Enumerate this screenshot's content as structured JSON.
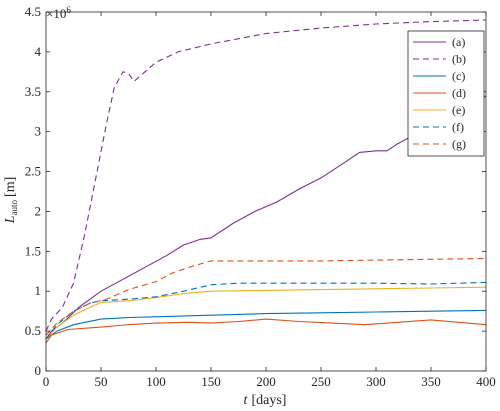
{
  "chart_data": {
    "type": "line",
    "xlabel_var": "t",
    "xlabel_unit": "[days]",
    "ylabel_var": "L",
    "ylabel_sub": "auto",
    "ylabel_unit": "[m]",
    "y_multiplier": "×10",
    "y_multiplier_exp": "6",
    "xlim": [
      0,
      400
    ],
    "ylim": [
      0,
      4.5
    ],
    "x_ticks": [
      0,
      50,
      100,
      150,
      200,
      250,
      300,
      350,
      400
    ],
    "y_ticks": [
      0,
      0.5,
      1,
      1.5,
      2,
      2.5,
      3,
      3.5,
      4,
      4.5
    ],
    "x_tick_labels": [
      "0",
      "50",
      "100",
      "150",
      "200",
      "250",
      "300",
      "350",
      "400"
    ],
    "y_tick_labels": [
      "0",
      "0.5",
      "1",
      "1.5",
      "2",
      "2.5",
      "3",
      "3.5",
      "4",
      "4.5"
    ],
    "grid": false,
    "legend_position": "top-right",
    "series": [
      {
        "name": "(a)",
        "color": "#7E2F8E",
        "dash": "solid",
        "points": [
          [
            0,
            0.4
          ],
          [
            5,
            0.5
          ],
          [
            15,
            0.6
          ],
          [
            30,
            0.8
          ],
          [
            50,
            1.0
          ],
          [
            70,
            1.15
          ],
          [
            90,
            1.3
          ],
          [
            110,
            1.45
          ],
          [
            125,
            1.58
          ],
          [
            140,
            1.65
          ],
          [
            150,
            1.67
          ],
          [
            170,
            1.85
          ],
          [
            190,
            2.0
          ],
          [
            210,
            2.12
          ],
          [
            230,
            2.28
          ],
          [
            250,
            2.42
          ],
          [
            270,
            2.6
          ],
          [
            285,
            2.74
          ],
          [
            300,
            2.76
          ],
          [
            310,
            2.76
          ],
          [
            320,
            2.85
          ],
          [
            340,
            3.0
          ],
          [
            360,
            3.1
          ],
          [
            380,
            3.25
          ],
          [
            400,
            3.45
          ]
        ]
      },
      {
        "name": "(b)",
        "color": "#7E2F8E",
        "dash": "dashed",
        "points": [
          [
            0,
            0.5
          ],
          [
            5,
            0.65
          ],
          [
            15,
            0.8
          ],
          [
            25,
            1.1
          ],
          [
            35,
            1.7
          ],
          [
            45,
            2.4
          ],
          [
            55,
            3.1
          ],
          [
            62,
            3.55
          ],
          [
            70,
            3.75
          ],
          [
            75,
            3.73
          ],
          [
            80,
            3.63
          ],
          [
            90,
            3.75
          ],
          [
            100,
            3.87
          ],
          [
            120,
            4.0
          ],
          [
            150,
            4.1
          ],
          [
            200,
            4.23
          ],
          [
            250,
            4.3
          ],
          [
            300,
            4.35
          ],
          [
            350,
            4.38
          ],
          [
            400,
            4.4
          ]
        ]
      },
      {
        "name": "(c)",
        "color": "#0072BD",
        "dash": "solid",
        "points": [
          [
            0,
            0.4
          ],
          [
            10,
            0.5
          ],
          [
            25,
            0.58
          ],
          [
            50,
            0.65
          ],
          [
            75,
            0.67
          ],
          [
            100,
            0.68
          ],
          [
            150,
            0.7
          ],
          [
            200,
            0.72
          ],
          [
            250,
            0.73
          ],
          [
            300,
            0.74
          ],
          [
            350,
            0.75
          ],
          [
            400,
            0.76
          ]
        ]
      },
      {
        "name": "(d)",
        "color": "#D95319",
        "dash": "solid",
        "points": [
          [
            0,
            0.35
          ],
          [
            5,
            0.45
          ],
          [
            20,
            0.52
          ],
          [
            50,
            0.55
          ],
          [
            75,
            0.58
          ],
          [
            100,
            0.6
          ],
          [
            130,
            0.61
          ],
          [
            150,
            0.6
          ],
          [
            175,
            0.62
          ],
          [
            200,
            0.65
          ],
          [
            230,
            0.62
          ],
          [
            260,
            0.6
          ],
          [
            290,
            0.58
          ],
          [
            320,
            0.61
          ],
          [
            350,
            0.64
          ],
          [
            375,
            0.61
          ],
          [
            400,
            0.58
          ]
        ]
      },
      {
        "name": "(e)",
        "color": "#EDB120",
        "dash": "solid",
        "points": [
          [
            0,
            0.4
          ],
          [
            10,
            0.55
          ],
          [
            25,
            0.7
          ],
          [
            40,
            0.8
          ],
          [
            50,
            0.86
          ],
          [
            75,
            0.88
          ],
          [
            100,
            0.92
          ],
          [
            125,
            0.97
          ],
          [
            150,
            1.0
          ],
          [
            200,
            1.01
          ],
          [
            250,
            1.02
          ],
          [
            300,
            1.03
          ],
          [
            350,
            1.04
          ],
          [
            400,
            1.05
          ]
        ]
      },
      {
        "name": "(f)",
        "color": "#0072BD",
        "dash": "dashed",
        "points": [
          [
            0,
            0.4
          ],
          [
            10,
            0.58
          ],
          [
            25,
            0.75
          ],
          [
            40,
            0.85
          ],
          [
            50,
            0.88
          ],
          [
            75,
            0.9
          ],
          [
            100,
            0.93
          ],
          [
            125,
            1.0
          ],
          [
            150,
            1.08
          ],
          [
            175,
            1.1
          ],
          [
            250,
            1.1
          ],
          [
            300,
            1.1
          ],
          [
            350,
            1.09
          ],
          [
            400,
            1.11
          ]
        ]
      },
      {
        "name": "(g)",
        "color": "#D95319",
        "dash": "dashed",
        "points": [
          [
            0,
            0.45
          ],
          [
            10,
            0.6
          ],
          [
            25,
            0.75
          ],
          [
            40,
            0.85
          ],
          [
            55,
            0.9
          ],
          [
            75,
            1.02
          ],
          [
            100,
            1.12
          ],
          [
            115,
            1.23
          ],
          [
            130,
            1.3
          ],
          [
            150,
            1.38
          ],
          [
            175,
            1.38
          ],
          [
            250,
            1.38
          ],
          [
            300,
            1.39
          ],
          [
            350,
            1.4
          ],
          [
            400,
            1.41
          ]
        ]
      }
    ]
  }
}
